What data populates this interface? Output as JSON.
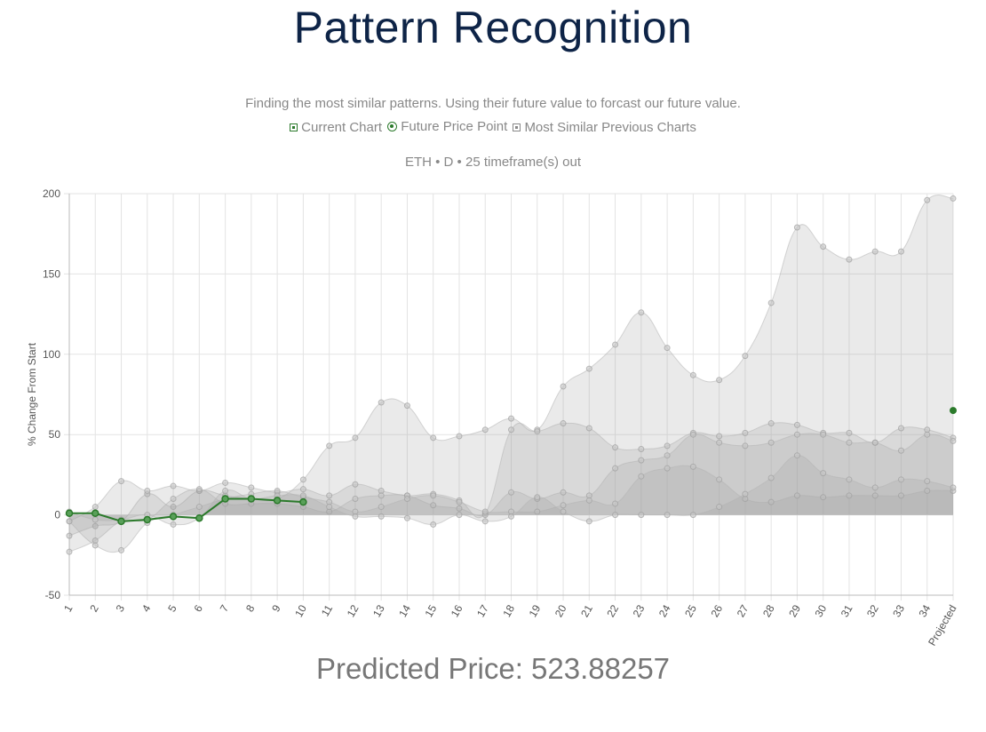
{
  "page": {
    "title": "Pattern Recognition",
    "subtitle": "Finding the most similar patterns. Using their future value to forcast our future value.",
    "meta": "ETH • D • 25 timeframe(s) out",
    "predicted": "Predicted Price: 523.88257"
  },
  "legend": [
    {
      "label": "Current Chart",
      "icon": "green-square-icon"
    },
    {
      "label": "Future Price Point",
      "icon": "green-circle-icon"
    },
    {
      "label": "Most Similar Previous Charts",
      "icon": "gray-square-icon"
    }
  ],
  "colors": {
    "current": "#2b7a2b",
    "similar_fill": "rgba(160,160,160,0.22)",
    "similar_line": "rgba(180,180,180,0.55)",
    "grid": "#e3e3e3",
    "title": "#0e2447"
  },
  "chart_data": {
    "type": "area",
    "ylabel": "% Change From Start",
    "xlabel": "",
    "ylim": [
      -50,
      200
    ],
    "yticks": [
      -50,
      0,
      50,
      100,
      150,
      200
    ],
    "grid": true,
    "categories": [
      "1",
      "2",
      "3",
      "4",
      "5",
      "6",
      "7",
      "8",
      "9",
      "10",
      "11",
      "12",
      "13",
      "14",
      "15",
      "16",
      "17",
      "18",
      "19",
      "20",
      "21",
      "22",
      "23",
      "24",
      "25",
      "26",
      "27",
      "28",
      "29",
      "30",
      "31",
      "32",
      "33",
      "34",
      "Projected"
    ],
    "current": [
      1,
      1,
      -4,
      -3,
      -1,
      -2,
      10,
      10,
      9,
      8
    ],
    "future_point": {
      "x": "Projected",
      "y": 65
    },
    "similar": [
      {
        "values": [
          -13,
          -7,
          -4,
          13,
          5,
          15,
          12,
          10,
          10,
          22,
          43,
          48,
          70,
          68,
          48,
          49,
          53,
          60,
          53,
          80,
          91,
          106,
          126,
          104,
          87,
          84,
          99,
          132,
          179,
          167,
          159,
          164,
          164,
          196,
          197
        ]
      },
      {
        "values": [
          -4,
          5,
          21,
          15,
          18,
          15,
          20,
          17,
          14,
          16,
          12,
          19,
          15,
          12,
          13,
          9,
          1,
          53,
          52,
          57,
          54,
          42,
          41,
          43,
          51,
          49,
          51,
          57,
          56,
          51,
          51,
          45,
          54,
          53,
          48
        ]
      },
      {
        "values": [
          -23,
          -16,
          -4,
          -3,
          10,
          16,
          7,
          7,
          7,
          5,
          2,
          10,
          12,
          12,
          6,
          4,
          0,
          14,
          10,
          14,
          12,
          29,
          34,
          37,
          50,
          45,
          43,
          45,
          50,
          50,
          45,
          45,
          40,
          50,
          46
        ]
      },
      {
        "values": [
          -4,
          -19,
          -22,
          -5,
          0,
          5,
          10,
          13,
          15,
          11,
          8,
          2,
          5,
          10,
          12,
          8,
          2,
          2,
          2,
          6,
          9,
          7,
          24,
          29,
          30,
          22,
          10,
          8,
          12,
          11,
          12,
          12,
          12,
          15,
          15
        ]
      },
      {
        "values": [
          2,
          -3,
          -3,
          0,
          -6,
          -2,
          15,
          10,
          12,
          12,
          5,
          -1,
          -1,
          -2,
          -6,
          0,
          -4,
          -1,
          11,
          2,
          -4,
          0,
          0,
          0,
          0,
          5,
          13,
          23,
          37,
          26,
          22,
          17,
          22,
          21,
          17
        ]
      }
    ]
  }
}
